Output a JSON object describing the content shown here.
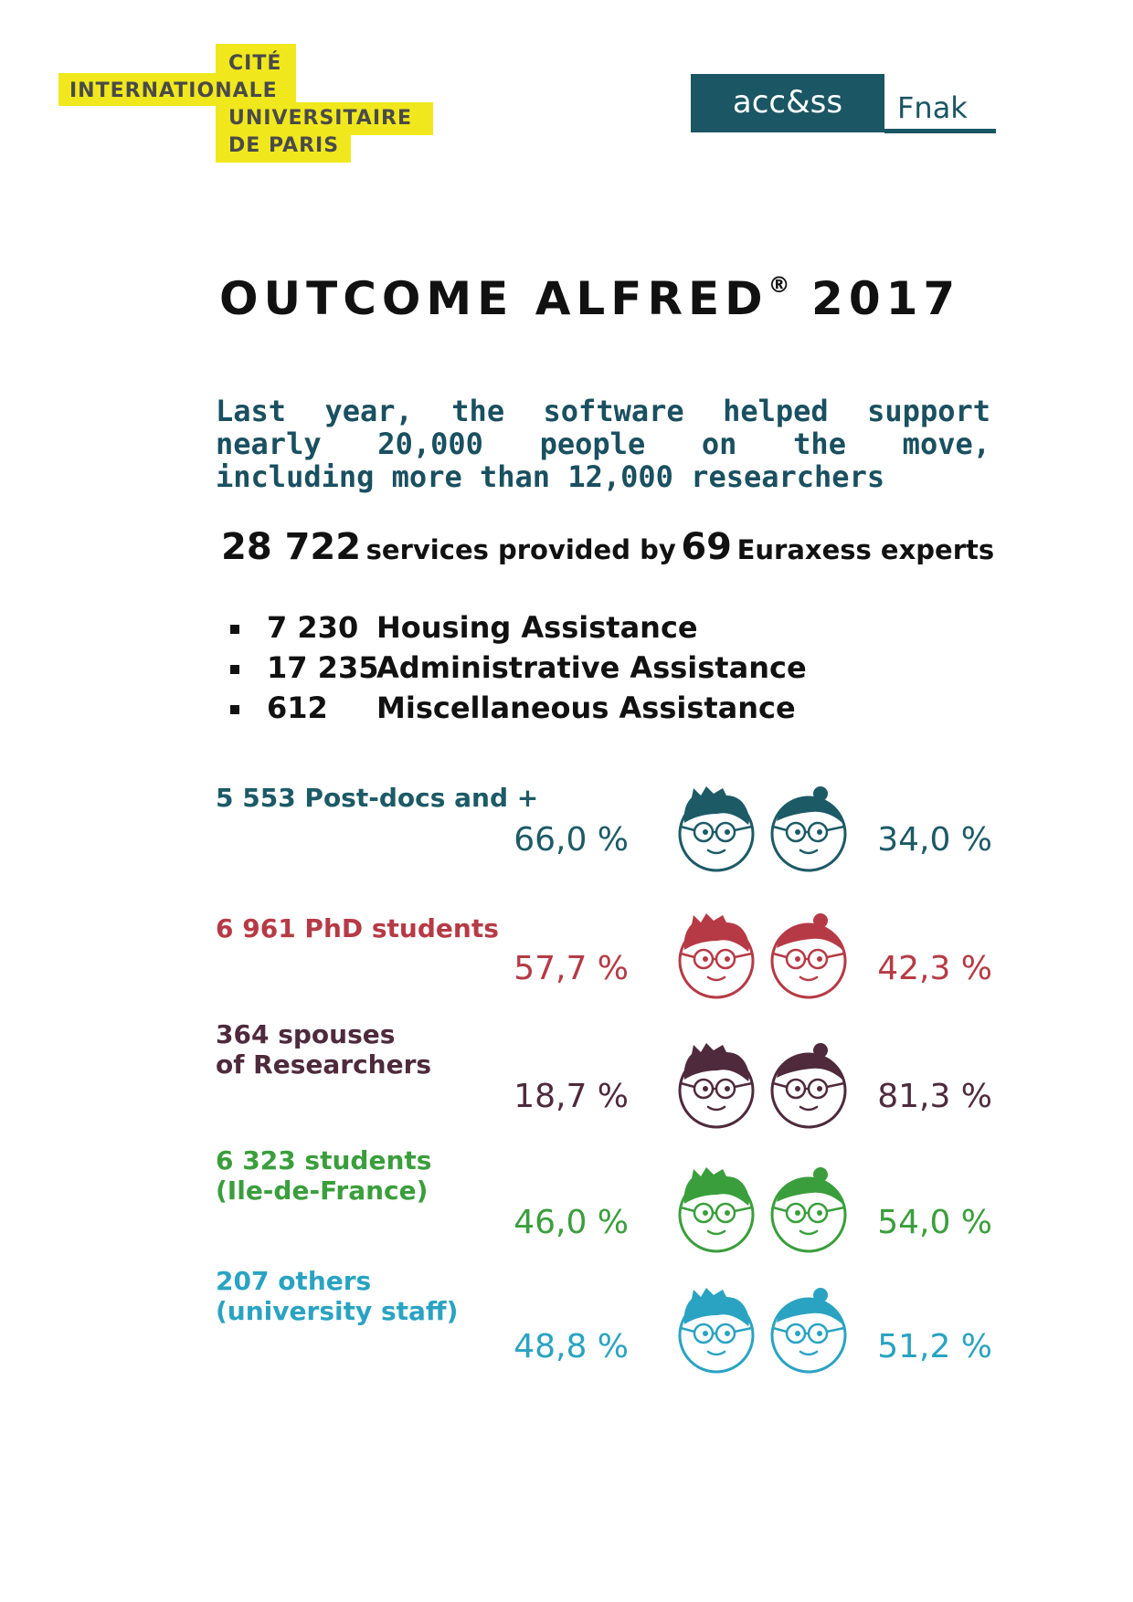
{
  "logo_cite": {
    "line1": "CITÉ",
    "line2": "INTERNATIONALE",
    "line3": "UNIVERSITAIRE",
    "line4": "DE PARIS"
  },
  "logo_access": {
    "box_text": "acc&ss",
    "side_text": "Fnak"
  },
  "title": {
    "main": "OUTCOME ALFRED",
    "reg": "®",
    "year": "2017"
  },
  "intro": {
    "line1": "Last year, the software helped support",
    "line2": "nearly 20,000 people on the move,",
    "line3": "including more than 12,000 researchers"
  },
  "services": {
    "count": "28 722",
    "text1": "services provided by",
    "experts_count": "69",
    "text2": "Euraxess experts"
  },
  "assistance": [
    {
      "number": "7 230",
      "label": "Housing Assistance"
    },
    {
      "number": "17 235",
      "label": "Administrative Assistance"
    },
    {
      "number": "612",
      "label": "Miscellaneous Assistance"
    }
  ],
  "groups": [
    {
      "label_line1": "5 553 Post-docs and +",
      "label_line2": "",
      "male_pct": "66,0 %",
      "female_pct": "34,0 %",
      "color": "#1c5a66"
    },
    {
      "label_line1": "6 961 PhD students",
      "label_line2": "",
      "male_pct": "57,7 %",
      "female_pct": "42,3 %",
      "color": "#b63a45"
    },
    {
      "label_line1": "364 spouses",
      "label_line2": "of Researchers",
      "male_pct": "18,7 %",
      "female_pct": "81,3 %",
      "color": "#4e2a3c"
    },
    {
      "label_line1": "6 323 students",
      "label_line2": "(Ile-de-France)",
      "male_pct": "46,0 %",
      "female_pct": "54,0 %",
      "color": "#3a9e3c"
    },
    {
      "label_line1": "207 others",
      "label_line2": "(university staff)",
      "male_pct": "48,8 %",
      "female_pct": "51,2 %",
      "color": "#2aa3c2"
    }
  ],
  "colors": {
    "logo_yellow": "#f0e81c",
    "access_teal": "#1a5663",
    "intro_text": "#1a5060"
  },
  "icons": [
    "male-face-icon",
    "female-face-icon",
    "bullet-square-icon"
  ]
}
